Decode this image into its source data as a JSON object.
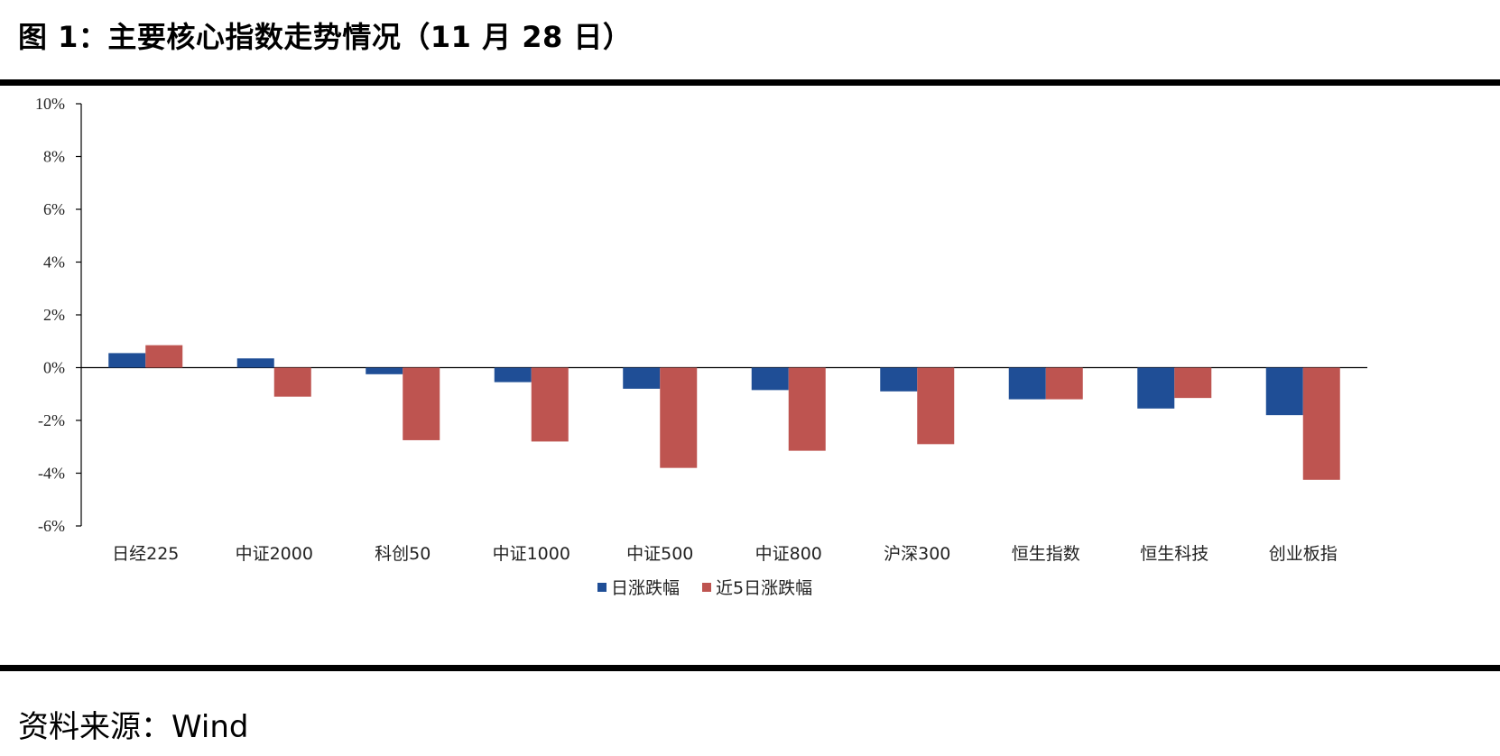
{
  "figure": {
    "title": "图 1：主要核心指数走势情况（11 月 28 日）",
    "source": "资料来源：Wind"
  },
  "colors": {
    "series1": "#1F4E96",
    "series2": "#BE5450"
  },
  "chart_data": {
    "type": "bar",
    "categories": [
      "日经225",
      "中证2000",
      "科创50",
      "中证1000",
      "中证500",
      "中证800",
      "沪深300",
      "恒生指数",
      "恒生科技",
      "创业板指"
    ],
    "series": [
      {
        "name": "日涨跌幅",
        "values": [
          0.55,
          0.35,
          -0.25,
          -0.55,
          -0.8,
          -0.85,
          -0.9,
          -1.2,
          -1.55,
          -1.8
        ]
      },
      {
        "name": "近5日涨跌幅",
        "values": [
          0.85,
          -1.1,
          -2.75,
          -2.8,
          -3.8,
          -3.15,
          -2.9,
          -1.2,
          -1.15,
          -4.25
        ]
      }
    ],
    "ylim": [
      -6,
      10
    ],
    "yticks": [
      10,
      8,
      6,
      4,
      2,
      0,
      -2,
      -4,
      -6
    ],
    "ytick_labels": [
      "10%",
      "8%",
      "6%",
      "4%",
      "2%",
      "0%",
      "-2%",
      "-4%",
      "-6%"
    ],
    "xlabel": "",
    "ylabel": "",
    "legend_position": "bottom-center",
    "grid": false
  }
}
